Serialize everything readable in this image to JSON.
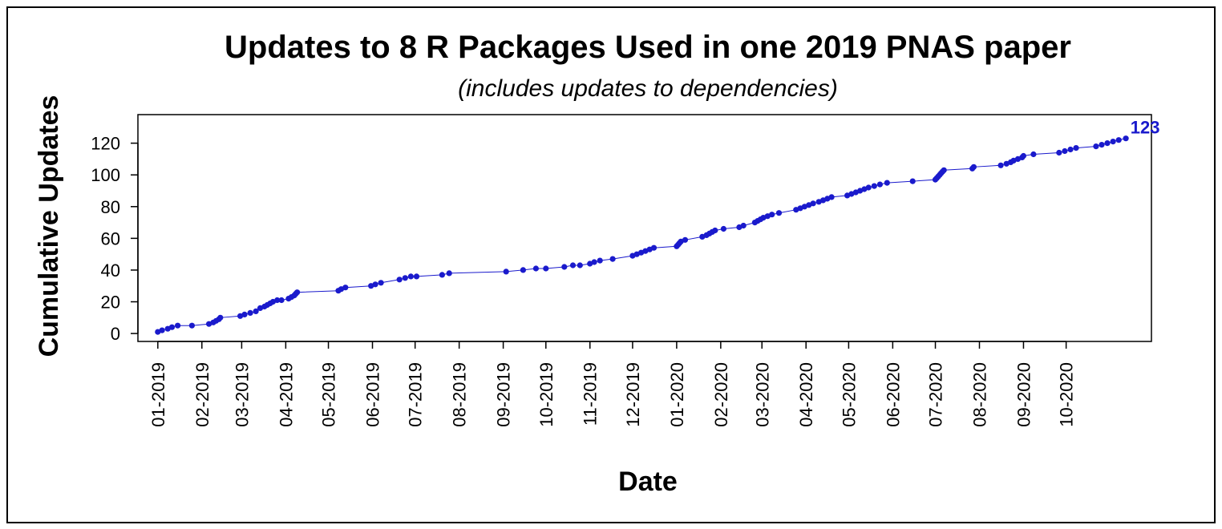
{
  "chart_data": {
    "type": "scatter",
    "title": "Updates to 8 R Packages Used in one 2019 PNAS paper",
    "subtitle": "(includes updates to dependencies)",
    "xlabel": "Date",
    "ylabel": "Cumulative Updates",
    "xlim": [
      "2018-12-18",
      "2020-11-30"
    ],
    "ylim": [
      -5,
      138
    ],
    "y_ticks": [
      0,
      20,
      40,
      60,
      80,
      100,
      120
    ],
    "x_ticks": [
      {
        "date": "2019-01-01",
        "label": "01-2019"
      },
      {
        "date": "2019-02-01",
        "label": "02-2019"
      },
      {
        "date": "2019-03-01",
        "label": "03-2019"
      },
      {
        "date": "2019-04-01",
        "label": "04-2019"
      },
      {
        "date": "2019-05-01",
        "label": "05-2019"
      },
      {
        "date": "2019-06-01",
        "label": "06-2019"
      },
      {
        "date": "2019-07-01",
        "label": "07-2019"
      },
      {
        "date": "2019-08-01",
        "label": "08-2019"
      },
      {
        "date": "2019-09-01",
        "label": "09-2019"
      },
      {
        "date": "2019-10-01",
        "label": "10-2019"
      },
      {
        "date": "2019-11-01",
        "label": "11-2019"
      },
      {
        "date": "2019-12-01",
        "label": "12-2019"
      },
      {
        "date": "2020-01-01",
        "label": "01-2020"
      },
      {
        "date": "2020-02-01",
        "label": "02-2020"
      },
      {
        "date": "2020-03-01",
        "label": "03-2020"
      },
      {
        "date": "2020-04-01",
        "label": "04-2020"
      },
      {
        "date": "2020-05-01",
        "label": "05-2020"
      },
      {
        "date": "2020-06-01",
        "label": "06-2020"
      },
      {
        "date": "2020-07-01",
        "label": "07-2020"
      },
      {
        "date": "2020-08-01",
        "label": "08-2020"
      },
      {
        "date": "2020-09-01",
        "label": "09-2020"
      },
      {
        "date": "2020-10-01",
        "label": "10-2020"
      }
    ],
    "grid": false,
    "legend": "none",
    "color": "#1a1acc",
    "annotation": {
      "text": "123",
      "x": "2020-11-12",
      "y": 123,
      "placement": "above-right"
    },
    "points": [
      {
        "x": "2019-01-01",
        "y": 1
      },
      {
        "x": "2019-01-04",
        "y": 2
      },
      {
        "x": "2019-01-08",
        "y": 3
      },
      {
        "x": "2019-01-11",
        "y": 4
      },
      {
        "x": "2019-01-15",
        "y": 5
      },
      {
        "x": "2019-01-25",
        "y": 5
      },
      {
        "x": "2019-02-06",
        "y": 6
      },
      {
        "x": "2019-02-09",
        "y": 7
      },
      {
        "x": "2019-02-11",
        "y": 8
      },
      {
        "x": "2019-02-13",
        "y": 9
      },
      {
        "x": "2019-02-14",
        "y": 10
      },
      {
        "x": "2019-02-28",
        "y": 11
      },
      {
        "x": "2019-03-03",
        "y": 12
      },
      {
        "x": "2019-03-07",
        "y": 13
      },
      {
        "x": "2019-03-11",
        "y": 14
      },
      {
        "x": "2019-03-14",
        "y": 16
      },
      {
        "x": "2019-03-17",
        "y": 17
      },
      {
        "x": "2019-03-19",
        "y": 18
      },
      {
        "x": "2019-03-21",
        "y": 19
      },
      {
        "x": "2019-03-23",
        "y": 20
      },
      {
        "x": "2019-03-26",
        "y": 21
      },
      {
        "x": "2019-03-29",
        "y": 21
      },
      {
        "x": "2019-04-03",
        "y": 22
      },
      {
        "x": "2019-04-05",
        "y": 23
      },
      {
        "x": "2019-04-07",
        "y": 24
      },
      {
        "x": "2019-04-08",
        "y": 25
      },
      {
        "x": "2019-04-09",
        "y": 26
      },
      {
        "x": "2019-05-08",
        "y": 27
      },
      {
        "x": "2019-05-10",
        "y": 28
      },
      {
        "x": "2019-05-13",
        "y": 29
      },
      {
        "x": "2019-05-31",
        "y": 30
      },
      {
        "x": "2019-06-03",
        "y": 31
      },
      {
        "x": "2019-06-07",
        "y": 32
      },
      {
        "x": "2019-06-20",
        "y": 34
      },
      {
        "x": "2019-06-24",
        "y": 35
      },
      {
        "x": "2019-06-28",
        "y": 36
      },
      {
        "x": "2019-07-02",
        "y": 36
      },
      {
        "x": "2019-07-20",
        "y": 37
      },
      {
        "x": "2019-07-25",
        "y": 38
      },
      {
        "x": "2019-09-03",
        "y": 39
      },
      {
        "x": "2019-09-15",
        "y": 40
      },
      {
        "x": "2019-09-24",
        "y": 41
      },
      {
        "x": "2019-10-01",
        "y": 41
      },
      {
        "x": "2019-10-14",
        "y": 42
      },
      {
        "x": "2019-10-20",
        "y": 43
      },
      {
        "x": "2019-10-25",
        "y": 43
      },
      {
        "x": "2019-11-01",
        "y": 44
      },
      {
        "x": "2019-11-04",
        "y": 45
      },
      {
        "x": "2019-11-08",
        "y": 46
      },
      {
        "x": "2019-11-17",
        "y": 47
      },
      {
        "x": "2019-12-01",
        "y": 49
      },
      {
        "x": "2019-12-04",
        "y": 50
      },
      {
        "x": "2019-12-07",
        "y": 51
      },
      {
        "x": "2019-12-10",
        "y": 52
      },
      {
        "x": "2019-12-13",
        "y": 53
      },
      {
        "x": "2019-12-16",
        "y": 54
      },
      {
        "x": "2020-01-01",
        "y": 55
      },
      {
        "x": "2020-01-02",
        "y": 56
      },
      {
        "x": "2020-01-03",
        "y": 57
      },
      {
        "x": "2020-01-04",
        "y": 58
      },
      {
        "x": "2020-01-07",
        "y": 59
      },
      {
        "x": "2020-01-19",
        "y": 61
      },
      {
        "x": "2020-01-22",
        "y": 62
      },
      {
        "x": "2020-01-24",
        "y": 63
      },
      {
        "x": "2020-01-26",
        "y": 64
      },
      {
        "x": "2020-01-28",
        "y": 65
      },
      {
        "x": "2020-02-03",
        "y": 66
      },
      {
        "x": "2020-02-14",
        "y": 67
      },
      {
        "x": "2020-02-17",
        "y": 68
      },
      {
        "x": "2020-02-25",
        "y": 70
      },
      {
        "x": "2020-02-27",
        "y": 71
      },
      {
        "x": "2020-02-29",
        "y": 72
      },
      {
        "x": "2020-03-02",
        "y": 73
      },
      {
        "x": "2020-03-05",
        "y": 74
      },
      {
        "x": "2020-03-08",
        "y": 75
      },
      {
        "x": "2020-03-13",
        "y": 76
      },
      {
        "x": "2020-03-25",
        "y": 78
      },
      {
        "x": "2020-03-28",
        "y": 79
      },
      {
        "x": "2020-03-31",
        "y": 80
      },
      {
        "x": "2020-04-03",
        "y": 81
      },
      {
        "x": "2020-04-06",
        "y": 82
      },
      {
        "x": "2020-04-10",
        "y": 83
      },
      {
        "x": "2020-04-13",
        "y": 84
      },
      {
        "x": "2020-04-16",
        "y": 85
      },
      {
        "x": "2020-04-19",
        "y": 86
      },
      {
        "x": "2020-04-30",
        "y": 87
      },
      {
        "x": "2020-05-03",
        "y": 88
      },
      {
        "x": "2020-05-06",
        "y": 89
      },
      {
        "x": "2020-05-09",
        "y": 90
      },
      {
        "x": "2020-05-12",
        "y": 91
      },
      {
        "x": "2020-05-15",
        "y": 92
      },
      {
        "x": "2020-05-19",
        "y": 93
      },
      {
        "x": "2020-05-23",
        "y": 94
      },
      {
        "x": "2020-05-28",
        "y": 95
      },
      {
        "x": "2020-06-15",
        "y": 96
      },
      {
        "x": "2020-07-01",
        "y": 97
      },
      {
        "x": "2020-07-02",
        "y": 98
      },
      {
        "x": "2020-07-03",
        "y": 99
      },
      {
        "x": "2020-07-04",
        "y": 100
      },
      {
        "x": "2020-07-05",
        "y": 101
      },
      {
        "x": "2020-07-06",
        "y": 102
      },
      {
        "x": "2020-07-07",
        "y": 103
      },
      {
        "x": "2020-07-27",
        "y": 104
      },
      {
        "x": "2020-07-28",
        "y": 105
      },
      {
        "x": "2020-08-16",
        "y": 106
      },
      {
        "x": "2020-08-20",
        "y": 107
      },
      {
        "x": "2020-08-23",
        "y": 108
      },
      {
        "x": "2020-08-25",
        "y": 109
      },
      {
        "x": "2020-08-28",
        "y": 110
      },
      {
        "x": "2020-08-31",
        "y": 111
      },
      {
        "x": "2020-09-01",
        "y": 112
      },
      {
        "x": "2020-09-08",
        "y": 113
      },
      {
        "x": "2020-09-26",
        "y": 114
      },
      {
        "x": "2020-09-30",
        "y": 115
      },
      {
        "x": "2020-10-04",
        "y": 116
      },
      {
        "x": "2020-10-08",
        "y": 117
      },
      {
        "x": "2020-10-22",
        "y": 118
      },
      {
        "x": "2020-10-26",
        "y": 119
      },
      {
        "x": "2020-10-30",
        "y": 120
      },
      {
        "x": "2020-11-03",
        "y": 121
      },
      {
        "x": "2020-11-07",
        "y": 122
      },
      {
        "x": "2020-11-12",
        "y": 123
      }
    ]
  }
}
